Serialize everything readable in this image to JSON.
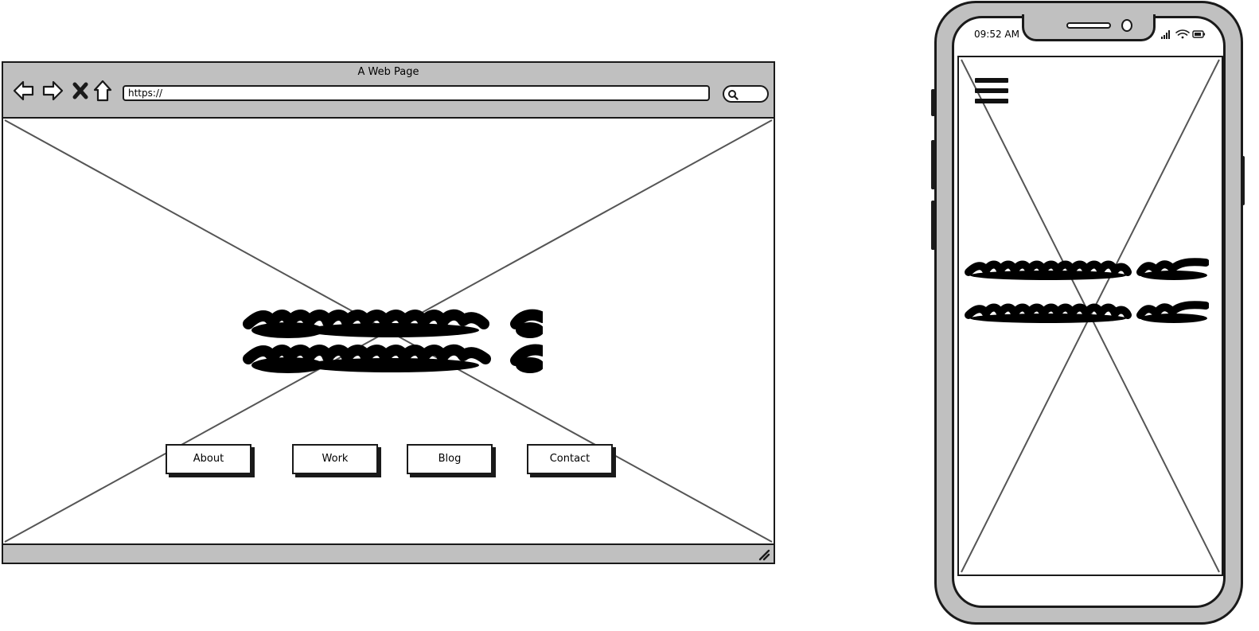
{
  "browser": {
    "title": "A Web Page",
    "url": "https://",
    "toolbar_icons": [
      "back-arrow-icon",
      "forward-arrow-icon",
      "close-icon",
      "home-icon",
      "search-icon"
    ],
    "nav_buttons": [
      {
        "label": "About"
      },
      {
        "label": "Work"
      },
      {
        "label": "Blog"
      },
      {
        "label": "Contact"
      }
    ],
    "hero_text_placeholder": "scribble-text",
    "image_placeholder": "x-image-placeholder"
  },
  "phone": {
    "time": "09:52 AM",
    "status_icons": [
      "signal-icon",
      "wifi-icon",
      "battery-icon"
    ],
    "menu_icon": "hamburger-menu-icon",
    "hero_text_placeholder": "scribble-text",
    "image_placeholder": "x-image-placeholder"
  },
  "colors": {
    "chrome_gray": "#c0c0c0",
    "stroke": "#1a1a1a",
    "placeholder_line": "#555555"
  }
}
